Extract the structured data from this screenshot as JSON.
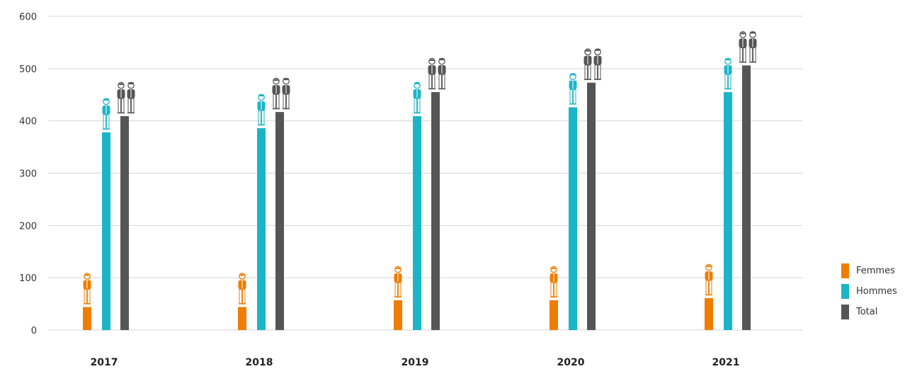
{
  "chart_data": {
    "type": "bar",
    "categories": [
      "2017",
      "2018",
      "2019",
      "2020",
      "2021"
    ],
    "series": [
      {
        "name": "Femmes",
        "color": "#EF7D00",
        "icon": "woman-icon",
        "values": [
          44,
          44,
          57,
          57,
          61
        ]
      },
      {
        "name": "Hommes",
        "color": "#1BB5C7",
        "icon": "man-icon",
        "values": [
          378,
          386,
          409,
          426,
          455
        ]
      },
      {
        "name": "Total",
        "color": "#555555",
        "icon": "couple-icon",
        "values": [
          409,
          417,
          455,
          473,
          506
        ]
      }
    ],
    "yticks": [
      "0",
      "100",
      "200",
      "300",
      "400",
      "500",
      "600"
    ],
    "ylim": [
      0,
      600
    ],
    "grid": true,
    "legend_position": "right"
  }
}
